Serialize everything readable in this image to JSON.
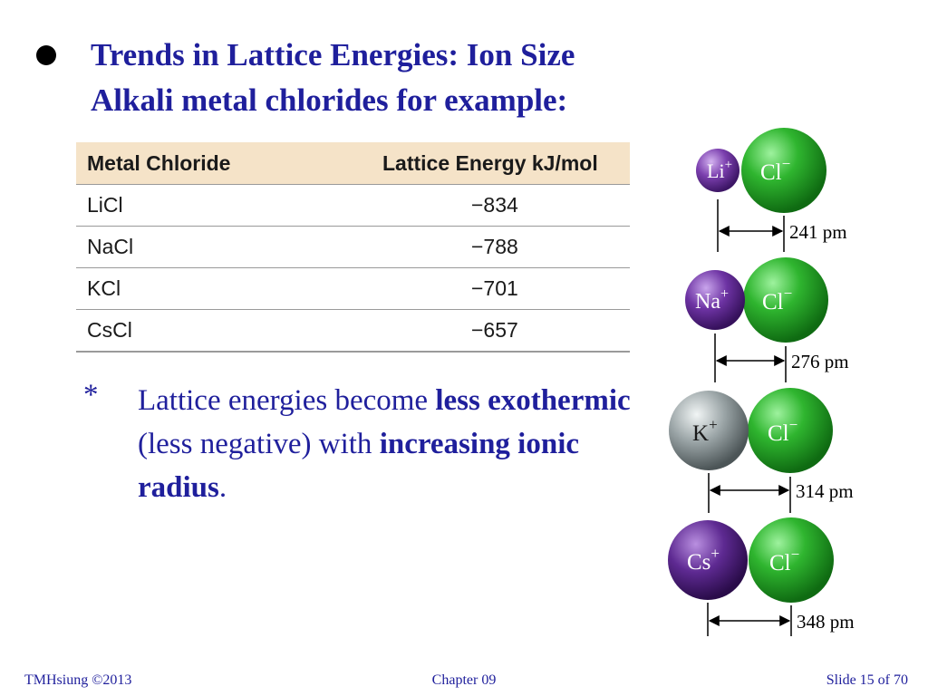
{
  "title": {
    "line1": "Trends in Lattice Energies: Ion Size",
    "line2": "Alkali metal chlorides for example:"
  },
  "table": {
    "headers": [
      "Metal Chloride",
      "Lattice Energy kJ/mol"
    ],
    "rows": [
      [
        "LiCl",
        "−834"
      ],
      [
        "NaCl",
        "−788"
      ],
      [
        "KCl",
        "−701"
      ],
      [
        "CsCl",
        "−657"
      ]
    ]
  },
  "note": {
    "marker": "*",
    "part1": "Lattice energies become ",
    "bold1": "less exothermic",
    "part2": " (less negative) with ",
    "bold2": "increasing ionic radius",
    "part3": "."
  },
  "diagram": {
    "pairs": [
      {
        "cation": "Li",
        "anion": "Cl",
        "distance": "241 pm",
        "cation_color": "#7b3fae"
      },
      {
        "cation": "Na",
        "anion": "Cl",
        "distance": "276 pm",
        "cation_color": "#6d33a3"
      },
      {
        "cation": "K",
        "anion": "Cl",
        "distance": "314 pm",
        "cation_color": "#9aa4a6"
      },
      {
        "cation": "Cs",
        "anion": "Cl",
        "distance": "348 pm",
        "cation_color": "#5e2a92"
      }
    ],
    "cation_charge": "+",
    "anion_charge": "−",
    "anion_color": "#2bb12b"
  },
  "footer": {
    "left": "TMHsiung  ©2013",
    "center": "Chapter 09",
    "right": "Slide 15 of 70"
  }
}
